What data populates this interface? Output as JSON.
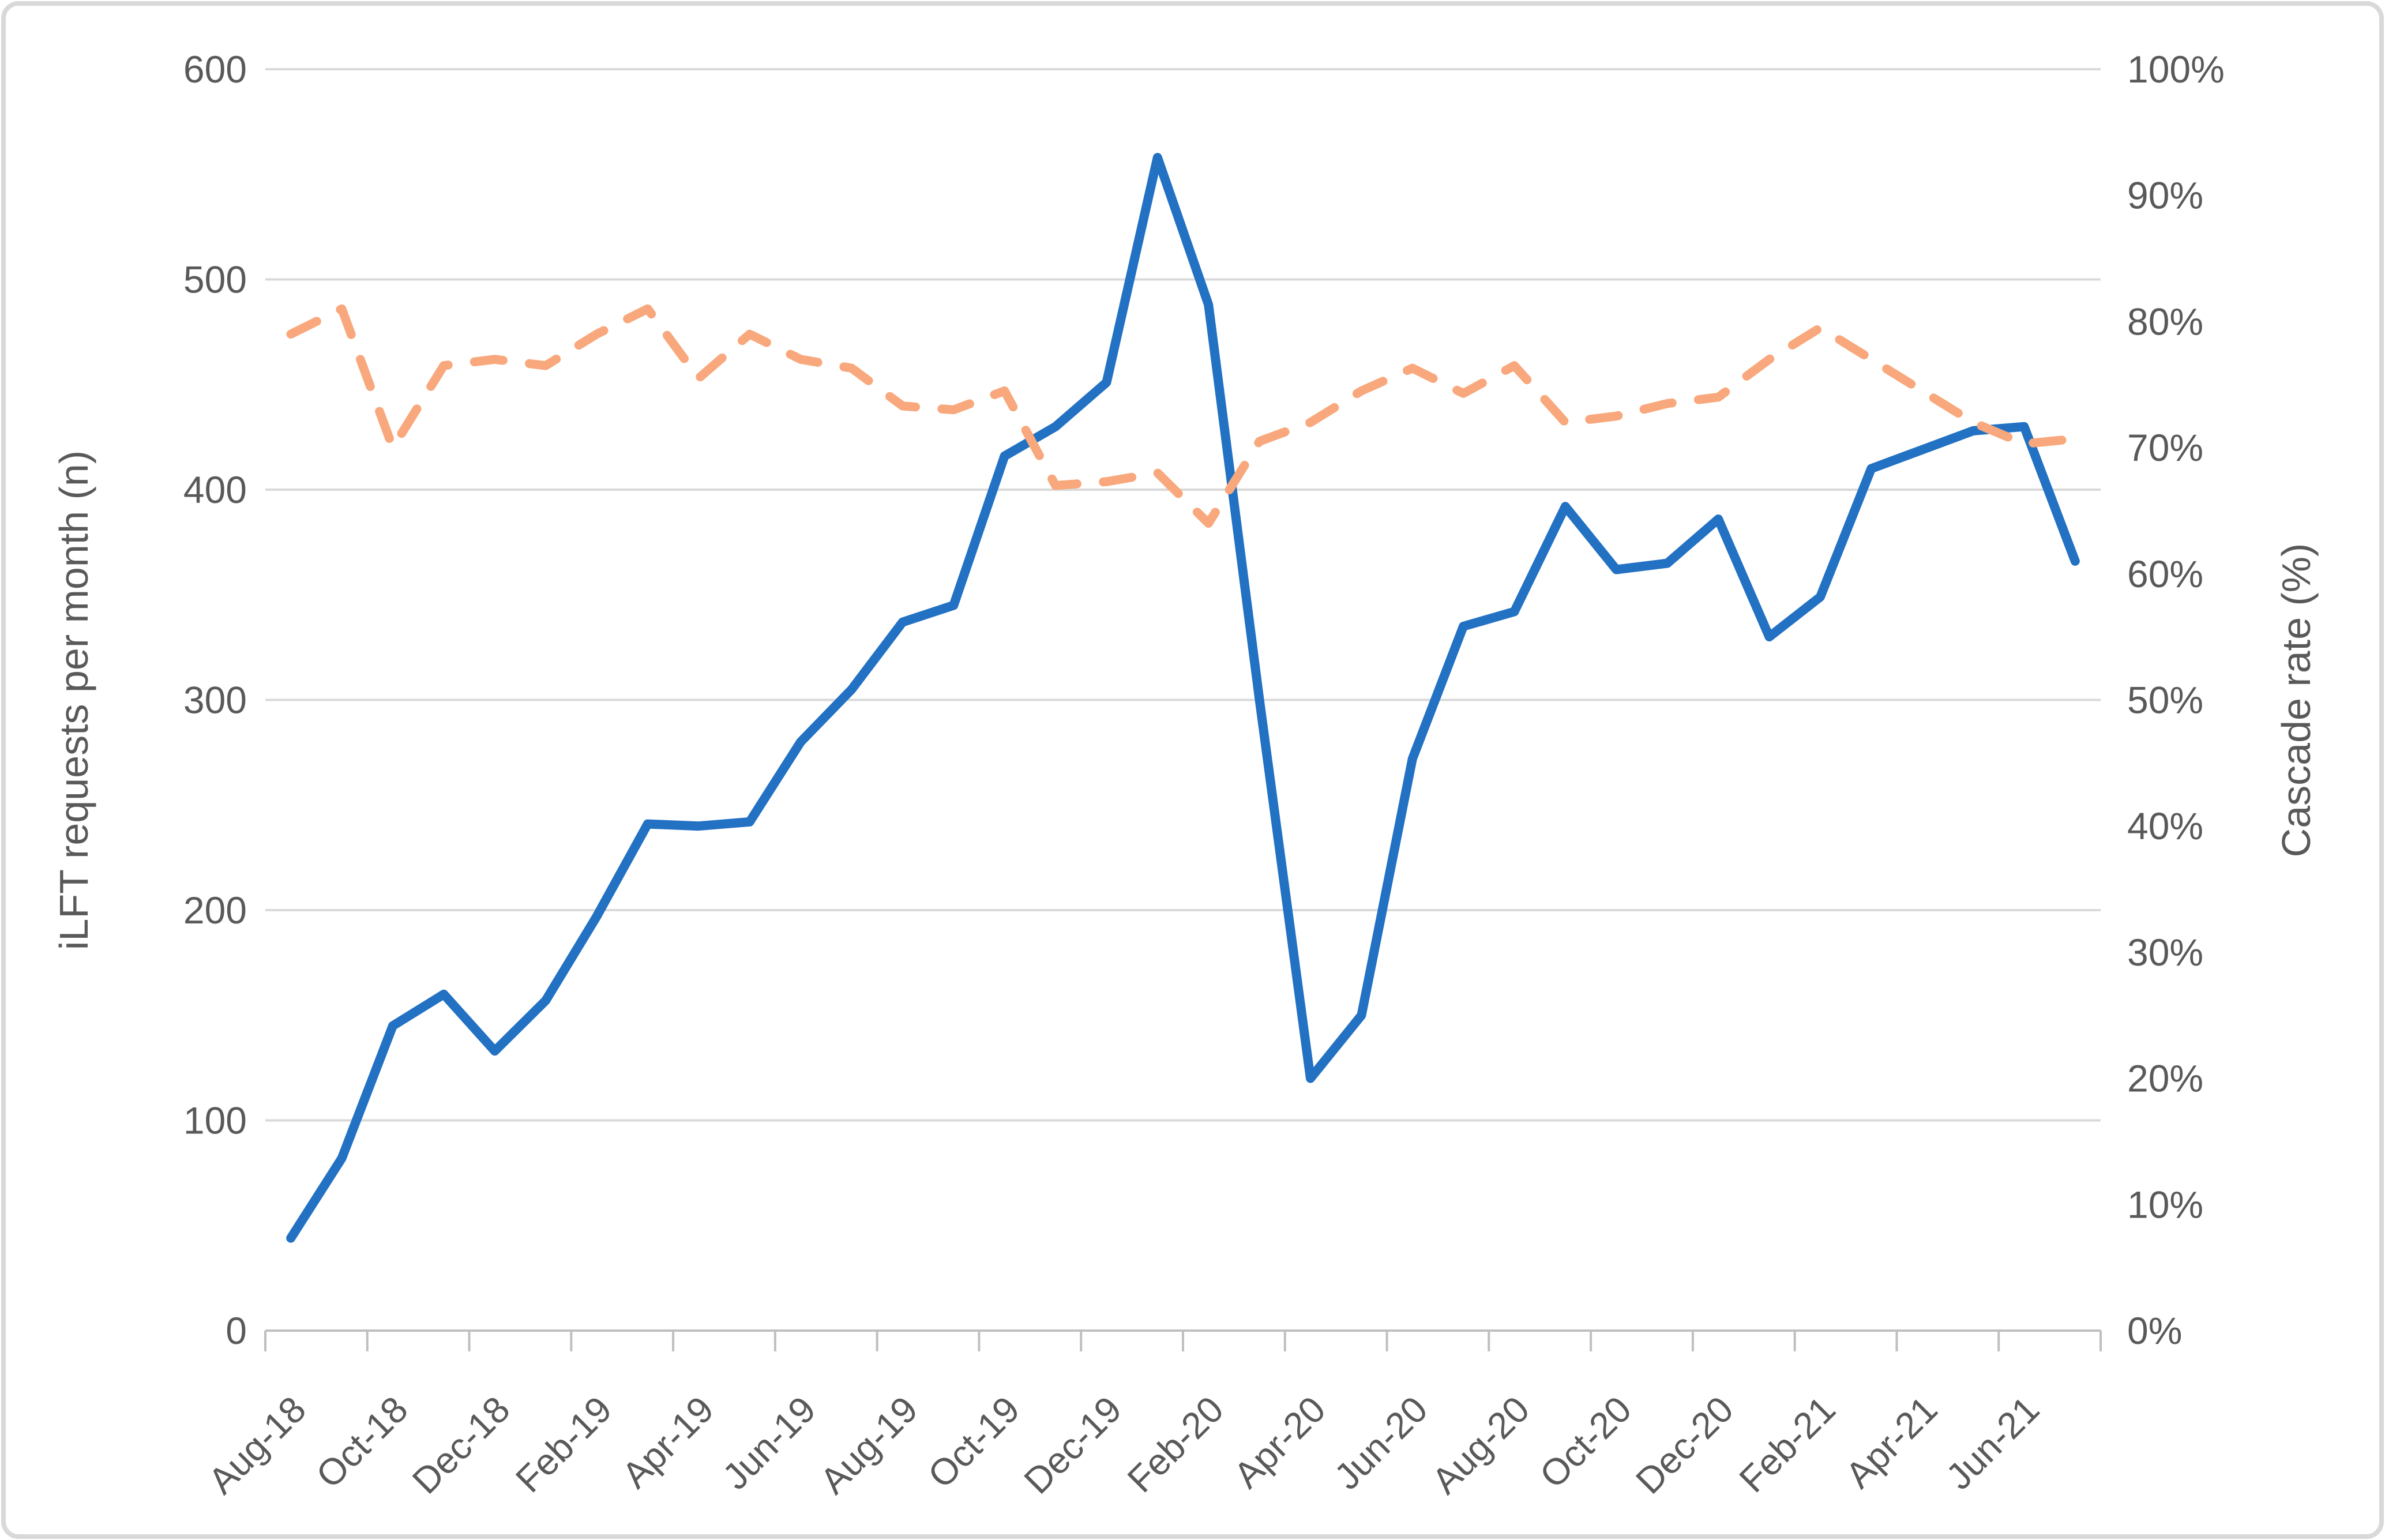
{
  "chart_data": {
    "type": "line",
    "title": "",
    "x": [
      "Aug-18",
      "Sep-18",
      "Oct-18",
      "Nov-18",
      "Dec-18",
      "Jan-19",
      "Feb-19",
      "Mar-19",
      "Apr-19",
      "May-19",
      "Jun-19",
      "Jul-19",
      "Aug-19",
      "Sep-19",
      "Oct-19",
      "Nov-19",
      "Dec-19",
      "Jan-20",
      "Feb-20",
      "Mar-20",
      "Apr-20",
      "May-20",
      "Jun-20",
      "Jul-20",
      "Aug-20",
      "Sep-20",
      "Oct-20",
      "Nov-20",
      "Dec-20",
      "Jan-21",
      "Feb-21",
      "Mar-21",
      "Apr-21",
      "May-21",
      "Jun-21",
      "Jul-21"
    ],
    "x_tick_labels": [
      "Aug-18",
      "Oct-18",
      "Dec-18",
      "Feb-19",
      "Apr-19",
      "Jun-19",
      "Aug-19",
      "Oct-19",
      "Dec-19",
      "Feb-20",
      "Apr-20",
      "Jun-20",
      "Aug-20",
      "Oct-20",
      "Dec-20",
      "Feb-21",
      "Apr-21",
      "Jun-21"
    ],
    "series": [
      {
        "name": "iLFT requests per month",
        "axis": "left",
        "style": "solid",
        "color": "#2271C3",
        "values": [
          44,
          82,
          145,
          160,
          133,
          157,
          197,
          241,
          240,
          242,
          280,
          305,
          337,
          345,
          416,
          430,
          451,
          558,
          488,
          300,
          120,
          150,
          272,
          335,
          342,
          392,
          362,
          365,
          386,
          330,
          349,
          410,
          419,
          428,
          430,
          366
        ]
      },
      {
        "name": "Cascade rate",
        "axis": "right",
        "style": "dashed",
        "color": "#F8A87C",
        "values": [
          79,
          81,
          70,
          76.5,
          77,
          76.5,
          79,
          81,
          75.5,
          79,
          77,
          76.3,
          73.3,
          73,
          74.5,
          67,
          67.3,
          68,
          64,
          70.5,
          72,
          74.5,
          76.3,
          74.3,
          76.5,
          72,
          72.5,
          73.5,
          74,
          77,
          79.5,
          77,
          74.5,
          72,
          70.3,
          70.7
        ]
      }
    ],
    "left_axis": {
      "title": "iLFT requests per month (n)",
      "min": 0,
      "max": 600,
      "step": 100,
      "tick_labels": [
        "0",
        "100",
        "200",
        "300",
        "400",
        "500",
        "600"
      ]
    },
    "right_axis": {
      "title": "Cascade rate (%)",
      "min": 0,
      "max": 100,
      "step": 10,
      "suffix": "%",
      "tick_labels": [
        "0%",
        "10%",
        "20%",
        "30%",
        "40%",
        "50%",
        "60%",
        "70%",
        "80%",
        "90%",
        "100%"
      ]
    },
    "grid": true,
    "legend": "none",
    "colors": {
      "gridline": "#D9D9D9",
      "axis_line": "#BFBFBF",
      "label_text": "#595959",
      "frame_border": "#D9D9D9",
      "background": "#FFFFFF"
    }
  }
}
